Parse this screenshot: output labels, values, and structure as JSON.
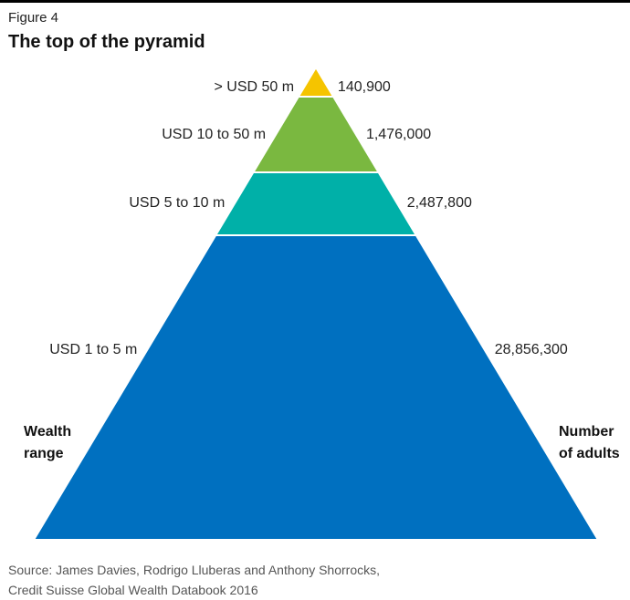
{
  "figure_label": "Figure 4",
  "title": "The top of the pyramid",
  "left_axis_title": [
    "Wealth",
    "range"
  ],
  "right_axis_title": [
    "Number",
    "of adults"
  ],
  "source": [
    "Source: James Davies, Rodrigo Lluberas and Anthony Shorrocks,",
    "Credit Suisse Global Wealth Databook 2016"
  ],
  "chart_data": {
    "type": "pyramid",
    "title": "The top of the pyramid",
    "tiers": [
      {
        "range": "> USD 50 m",
        "adults": 140900,
        "adults_label": "140,900",
        "color": "#f5c400"
      },
      {
        "range": "USD 10 to 50 m",
        "adults": 1476000,
        "adults_label": "1,476,000",
        "color": "#7ab840"
      },
      {
        "range": "USD 5 to 10 m",
        "adults": 2487800,
        "adults_label": "2,487,800",
        "color": "#00b0a8"
      },
      {
        "range": "USD 1 to 5 m",
        "adults": 28856300,
        "adults_label": "28,856,300",
        "color": "#0070c0"
      }
    ]
  }
}
